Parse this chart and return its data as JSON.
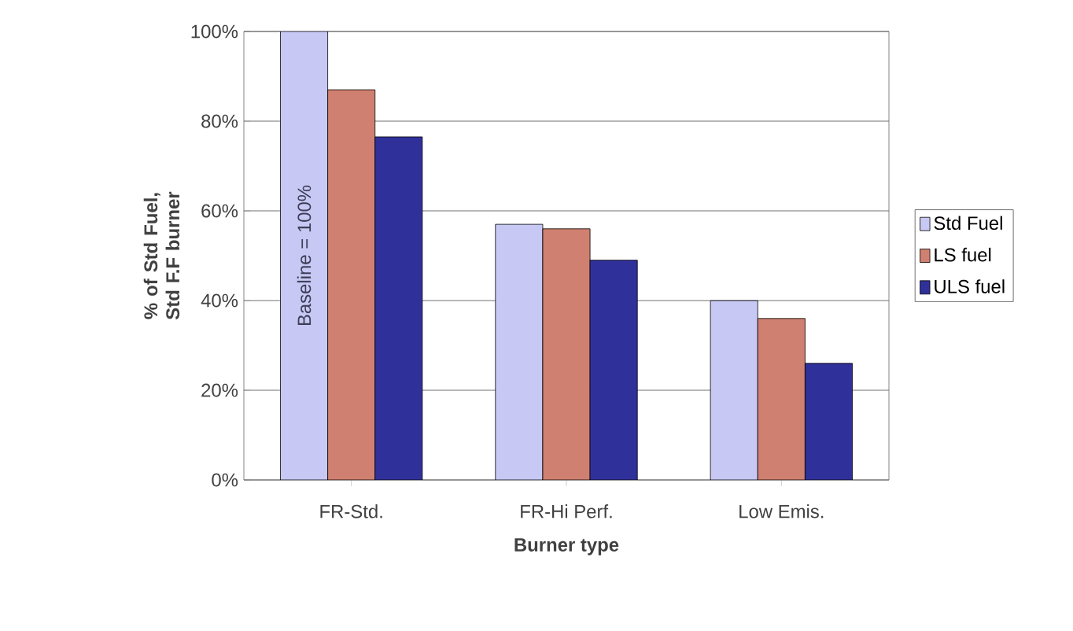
{
  "chart_data": {
    "type": "bar",
    "xlabel": "Burner type",
    "ylabel": "% of Std Fuel, Std F.F burner",
    "categories": [
      "FR-Std.",
      "FR-Hi Perf.",
      "Low Emis."
    ],
    "series": [
      {
        "name": "Std Fuel",
        "color": "#c8c8f4",
        "values": [
          100,
          57,
          40
        ]
      },
      {
        "name": "LS fuel",
        "color": "#d08070",
        "values": [
          87,
          56,
          36
        ]
      },
      {
        "name": "ULS fuel",
        "color": "#30309a",
        "values": [
          76.5,
          49,
          26
        ]
      }
    ],
    "ylim": [
      0,
      100
    ],
    "yticks": [
      {
        "value": 0,
        "label": "0%"
      },
      {
        "value": 20,
        "label": "20%"
      },
      {
        "value": 40,
        "label": "40%"
      },
      {
        "value": 60,
        "label": "60%"
      },
      {
        "value": 80,
        "label": "80%"
      },
      {
        "value": 100,
        "label": "100%"
      }
    ],
    "grid": "y",
    "legend": "right",
    "annotations": [
      "Baseline = 100%"
    ]
  }
}
